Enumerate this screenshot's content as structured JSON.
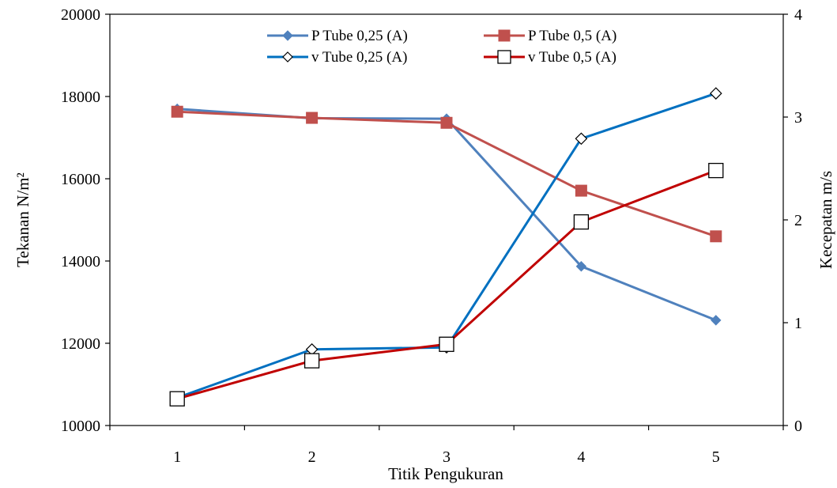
{
  "chart_data": {
    "type": "line",
    "title": "",
    "xlabel": "Titik Pengukuran",
    "ylabel": "Tekanan N/m²",
    "y2label": "Kecepatan m/s",
    "x": [
      1,
      2,
      3,
      4,
      5
    ],
    "x_tick_labels": [
      "1",
      "2",
      "3",
      "4",
      "5"
    ],
    "ylim": [
      10000,
      20000
    ],
    "y_ticks": [
      10000,
      12000,
      14000,
      16000,
      18000,
      20000
    ],
    "y_tick_labels": [
      "10000",
      "12000",
      "14000",
      "16000",
      "18000",
      "20000"
    ],
    "y2lim": [
      0,
      4
    ],
    "y2_ticks": [
      0,
      1,
      2,
      3,
      4
    ],
    "y2_tick_labels": [
      "0",
      "1",
      "2",
      "3",
      "4"
    ],
    "grid": false,
    "legend_position": "top-center",
    "series": [
      {
        "name": "P Tube 0,25 (A)",
        "axis": "left",
        "marker": "diamond-filled",
        "color": "#4f81bd",
        "values": [
          17700,
          17470,
          17460,
          13870,
          12560
        ]
      },
      {
        "name": "P Tube 0,5 (A)",
        "axis": "left",
        "marker": "square-filled",
        "color": "#c0504d",
        "values": [
          17630,
          17480,
          17360,
          15710,
          14600
        ]
      },
      {
        "name": "v Tube 0,25 (A)",
        "axis": "right",
        "marker": "diamond-open",
        "color": "#0070c0",
        "values": [
          0.27,
          0.74,
          0.76,
          2.79,
          3.23
        ]
      },
      {
        "name": "v Tube 0,5 (A)",
        "axis": "right",
        "marker": "square-open",
        "color": "#c00000",
        "values": [
          0.26,
          0.63,
          0.79,
          1.98,
          2.48
        ]
      }
    ]
  }
}
